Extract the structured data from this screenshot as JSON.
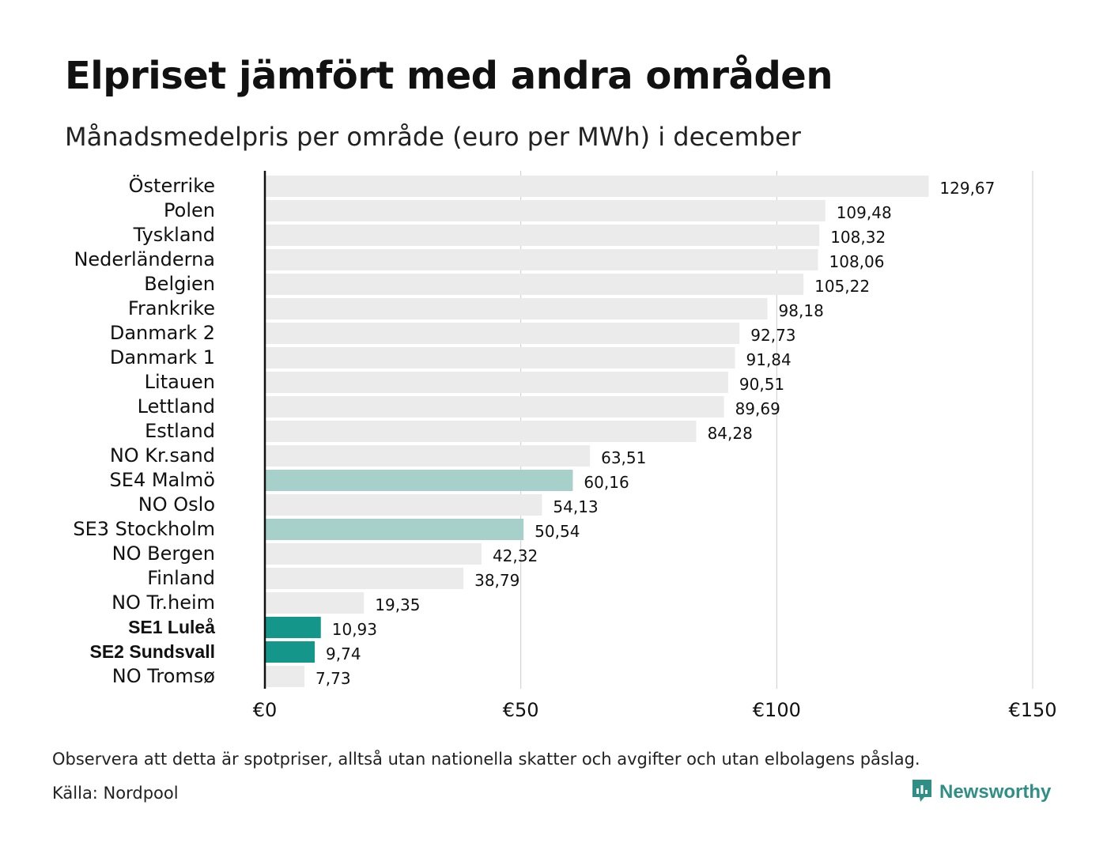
{
  "header": {
    "title": "Elpriset jämfört med andra områden",
    "subtitle": "Månadsmedelpris per område (euro per MWh) i december"
  },
  "footer": {
    "note": "Observera att detta är spotpriser, alltså utan nationella skatter och avgifter och utan elbolagens påslag.",
    "source": "Källa: Nordpool",
    "brand": "Newsworthy",
    "brand_icon": "newsworthy-logo-icon"
  },
  "colors": {
    "default_bar": "#ebebeb",
    "highlight_light": "#a8d0ca",
    "highlight_dark": "#14978a",
    "axis": "#111111",
    "grid": "#cccccc",
    "brand": "#2f8f84"
  },
  "chart_data": {
    "type": "bar",
    "orientation": "horizontal",
    "categories": [
      "Österrike",
      "Polen",
      "Tyskland",
      "Nederländerna",
      "Belgien",
      "Frankrike",
      "Danmark  2",
      "Danmark  1",
      "Litauen",
      "Lettland",
      "Estland",
      "NO Kr.sand",
      "SE4  Malmö",
      "NO Oslo",
      "SE3  Stockholm",
      "NO Bergen",
      "Finland",
      "NO Tr.heim",
      "SE1 Luleå",
      "SE2 Sundsvall",
      "NO Tromsø"
    ],
    "values": [
      129.67,
      109.48,
      108.32,
      108.06,
      105.22,
      98.18,
      92.73,
      91.84,
      90.51,
      89.69,
      84.28,
      63.51,
      60.16,
      54.13,
      50.54,
      42.32,
      38.79,
      19.35,
      10.93,
      9.74,
      7.73
    ],
    "value_labels": [
      "129,67",
      "109,48",
      "108,32",
      "108,06",
      "105,22",
      "98,18",
      "92,73",
      "91,84",
      "90,51",
      "89,69",
      "84,28",
      "63,51",
      "60,16",
      "54,13",
      "50,54",
      "42,32",
      "38,79",
      "19,35",
      "10,93",
      "9,74",
      "7,73"
    ],
    "highlight": [
      "none",
      "none",
      "none",
      "none",
      "none",
      "none",
      "none",
      "none",
      "none",
      "none",
      "none",
      "none",
      "light",
      "none",
      "light",
      "none",
      "none",
      "none",
      "dark",
      "dark",
      "none"
    ],
    "bold_labels": [
      "SE1 Luleå",
      "SE2 Sundsvall"
    ],
    "x_ticks": [
      0,
      50,
      100,
      150
    ],
    "x_tick_labels": [
      "€0",
      "€50",
      "€100",
      "€150"
    ],
    "xlim": [
      0,
      150
    ],
    "grid": "vertical",
    "legend": "none"
  }
}
